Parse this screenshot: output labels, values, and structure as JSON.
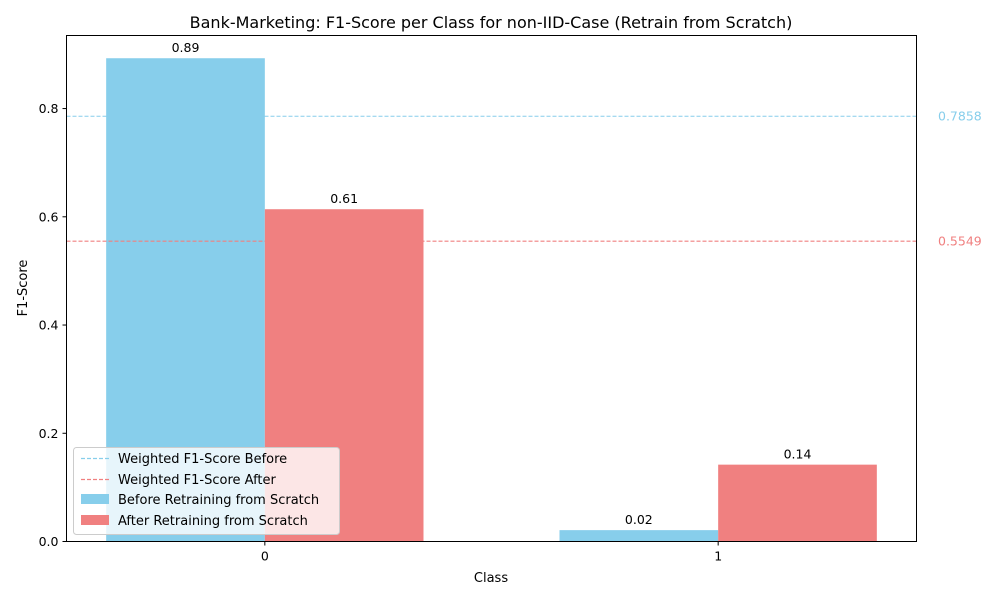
{
  "chart_data": {
    "type": "bar",
    "title": "Bank-Marketing: F1-Score per Class for non-IID-Case (Retrain from Scratch)",
    "xlabel": "Class",
    "ylabel": "F1-Score",
    "categories": [
      "0",
      "1"
    ],
    "ylim": [
      0,
      0.935
    ],
    "yticks": [
      "0.0",
      "0.2",
      "0.4",
      "0.6",
      "0.8"
    ],
    "series": [
      {
        "name": "Before Retraining from Scratch",
        "color": "#87CEEB",
        "values": [
          0.893,
          0.021
        ],
        "labels": [
          "0.89",
          "0.02"
        ]
      },
      {
        "name": "After Retraining from Scratch",
        "color": "#F08080",
        "values": [
          0.614,
          0.142
        ],
        "labels": [
          "0.61",
          "0.14"
        ]
      }
    ],
    "reference_lines": [
      {
        "name": "Weighted F1-Score Before",
        "value": 0.7858,
        "label": "0.7858",
        "color": "#87CEEB",
        "style": "dashed"
      },
      {
        "name": "Weighted F1-Score After",
        "value": 0.5549,
        "label": "0.5549",
        "color": "#F08080",
        "style": "dashed"
      }
    ],
    "legend": {
      "placement": "lower-left",
      "items": [
        "Weighted F1-Score Before",
        "Weighted F1-Score After",
        "Before Retraining from Scratch",
        "After Retraining from Scratch"
      ]
    },
    "grid": false
  }
}
